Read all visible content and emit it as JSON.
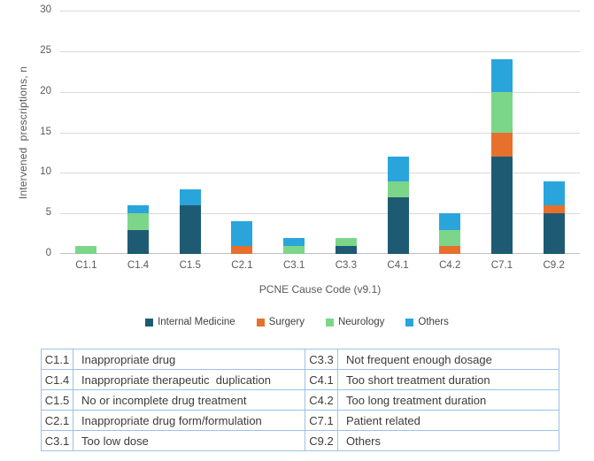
{
  "chart_data": {
    "type": "bar",
    "stacked": true,
    "xlabel": "PCNE Cause Code (v9.1)",
    "ylabel": "Intervened  prescriptions, n",
    "ylim": [
      0,
      30
    ],
    "yticks": [
      0,
      5,
      10,
      15,
      20,
      25,
      30
    ],
    "grid": true,
    "legend_position": "bottom",
    "categories": [
      "C1.1",
      "C1.4",
      "C1.5",
      "C2.1",
      "C3.1",
      "C3.3",
      "C4.1",
      "C4.2",
      "C7.1",
      "C9.2"
    ],
    "series": [
      {
        "name": "Internal Medicine",
        "color": "#1e5b73",
        "values": [
          0,
          3,
          6,
          0,
          0,
          1,
          7,
          0,
          12,
          5
        ]
      },
      {
        "name": "Surgery",
        "color": "#e7702d",
        "values": [
          0,
          0,
          0,
          1,
          0,
          0,
          0,
          1,
          3,
          1
        ]
      },
      {
        "name": "Neurology",
        "color": "#7cd689",
        "values": [
          1,
          2,
          0,
          0,
          1,
          1,
          2,
          2,
          5,
          0
        ]
      },
      {
        "name": "Others",
        "color": "#29a5dc",
        "values": [
          0,
          1,
          2,
          3,
          1,
          0,
          3,
          2,
          4,
          3
        ]
      }
    ],
    "totals": [
      1,
      6,
      8,
      4,
      2,
      2,
      12,
      5,
      24,
      9
    ]
  },
  "code_table": {
    "rows": [
      [
        "C1.1",
        "Inappropriate drug",
        "C3.3",
        "Not frequent enough dosage"
      ],
      [
        "C1.4",
        "Inappropriate therapeutic  duplication",
        "C4.1",
        "Too short treatment duration"
      ],
      [
        "C1.5",
        "No or incomplete drug treatment",
        "C4.2",
        "Too long treatment duration"
      ],
      [
        "C2.1",
        "Inappropriate drug form/formulation",
        "C7.1",
        "Patient related"
      ],
      [
        "C3.1",
        "Too low dose",
        "C9.2",
        "Others"
      ]
    ]
  },
  "colors": {
    "gridline": "#d9d9d9",
    "axis_line": "#bfbfbf",
    "tick_text": "#595959",
    "table_border": "#9cc2e5"
  }
}
